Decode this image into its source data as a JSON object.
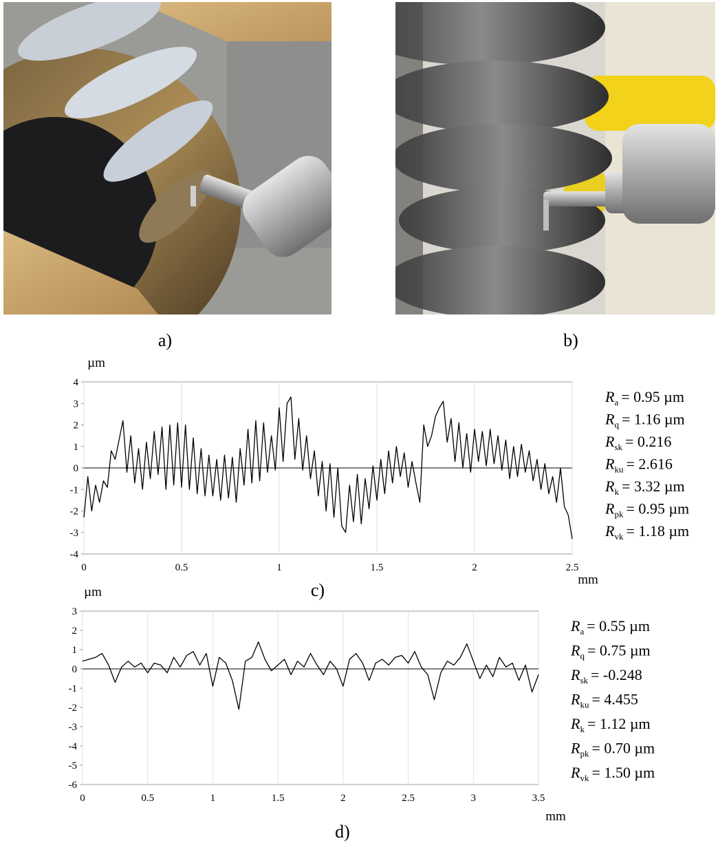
{
  "figure": {
    "photos": [
      {
        "caption": "a)"
      },
      {
        "caption": "b)"
      }
    ]
  },
  "chart_data": [
    {
      "type": "line",
      "caption": "c)",
      "xlabel": "mm",
      "ylabel": "µm",
      "grid": true,
      "xlim": [
        0,
        2.5
      ],
      "ylim": [
        -4,
        4
      ],
      "xticks": [
        0,
        0.5,
        1,
        1.5,
        2,
        2.5
      ],
      "yticks": [
        -4,
        -3,
        -2,
        -1,
        0,
        1,
        2,
        3,
        4
      ],
      "x": [
        0,
        0.02,
        0.04,
        0.06,
        0.08,
        0.1,
        0.12,
        0.14,
        0.16,
        0.18,
        0.2,
        0.22,
        0.24,
        0.26,
        0.28,
        0.3,
        0.32,
        0.34,
        0.36,
        0.38,
        0.4,
        0.42,
        0.44,
        0.46,
        0.48,
        0.5,
        0.52,
        0.54,
        0.56,
        0.58,
        0.6,
        0.62,
        0.64,
        0.66,
        0.68,
        0.7,
        0.72,
        0.74,
        0.76,
        0.78,
        0.8,
        0.82,
        0.84,
        0.86,
        0.88,
        0.9,
        0.92,
        0.94,
        0.96,
        0.98,
        1,
        1.02,
        1.04,
        1.06,
        1.08,
        1.1,
        1.12,
        1.14,
        1.16,
        1.18,
        1.2,
        1.22,
        1.24,
        1.26,
        1.28,
        1.3,
        1.32,
        1.34,
        1.36,
        1.38,
        1.4,
        1.42,
        1.44,
        1.46,
        1.48,
        1.5,
        1.52,
        1.54,
        1.56,
        1.58,
        1.6,
        1.62,
        1.64,
        1.66,
        1.68,
        1.7,
        1.72,
        1.74,
        1.76,
        1.78,
        1.8,
        1.82,
        1.84,
        1.86,
        1.88,
        1.9,
        1.92,
        1.94,
        1.96,
        1.98,
        2,
        2.02,
        2.04,
        2.06,
        2.08,
        2.1,
        2.12,
        2.14,
        2.16,
        2.18,
        2.2,
        2.22,
        2.24,
        2.26,
        2.28,
        2.3,
        2.32,
        2.34,
        2.36,
        2.38,
        2.4,
        2.42,
        2.44,
        2.46,
        2.48,
        2.5
      ],
      "series": [
        {
          "color": "#000000",
          "values": [
            -2.3,
            -0.4,
            -2.0,
            -0.8,
            -1.6,
            -0.6,
            -0.9,
            0.8,
            0.4,
            1.3,
            2.2,
            -0.2,
            1.5,
            -0.7,
            0.9,
            -1.0,
            1.2,
            -0.5,
            1.7,
            -0.3,
            1.9,
            -1.0,
            2.0,
            -0.8,
            2.1,
            -0.9,
            2.0,
            -1.0,
            1.4,
            -1.2,
            0.9,
            -1.3,
            0.6,
            -1.3,
            0.4,
            -1.5,
            0.6,
            -1.4,
            0.5,
            -1.6,
            0.9,
            -0.8,
            1.8,
            -0.7,
            2.2,
            -0.6,
            2.1,
            -0.2,
            1.5,
            -0.1,
            2.8,
            0.3,
            3.0,
            3.3,
            0.4,
            2.3,
            -0.1,
            1.5,
            -0.5,
            0.8,
            -1.3,
            0.3,
            -2.0,
            0.2,
            -2.3,
            0.0,
            -2.7,
            -3.0,
            -0.8,
            -2.5,
            -0.3,
            -2.6,
            -0.5,
            -1.9,
            0.1,
            -1.5,
            0.4,
            -1.2,
            0.8,
            -0.7,
            1.0,
            -0.4,
            0.7,
            -0.9,
            0.3,
            -0.7,
            -1.6,
            2.0,
            1.0,
            1.5,
            2.4,
            2.8,
            3.1,
            1.2,
            2.3,
            0.3,
            2.1,
            0.0,
            1.6,
            -0.2,
            1.8,
            0.3,
            1.7,
            0.1,
            1.8,
            0.2,
            1.5,
            -0.1,
            1.3,
            -0.5,
            1.0,
            -0.4,
            1.1,
            -0.2,
            0.8,
            -0.6,
            0.4,
            -1.0,
            0.2,
            -1.2,
            -0.4,
            -1.6,
            0.0,
            -1.8,
            -2.2,
            -3.3
          ]
        }
      ],
      "stats": [
        {
          "symbol": "R",
          "sub": "a",
          "rest": "= 0.95 µm"
        },
        {
          "symbol": "R",
          "sub": "q",
          "rest": "= 1.16 µm"
        },
        {
          "symbol": "R",
          "sub": "sk",
          "rest": "= 0.216"
        },
        {
          "symbol": "R",
          "sub": "ku",
          "rest": "= 2.616"
        },
        {
          "symbol": "R",
          "sub": "k",
          "rest": "= 3.32 µm"
        },
        {
          "symbol": "R",
          "sub": "pk",
          "rest": "= 0.95 µm"
        },
        {
          "symbol": "R",
          "sub": "vk",
          "rest": "= 1.18 µm"
        }
      ]
    },
    {
      "type": "line",
      "caption": "d)",
      "xlabel": "mm",
      "ylabel": "µm",
      "grid": true,
      "xlim": [
        0,
        3.5
      ],
      "ylim": [
        -6,
        3
      ],
      "xticks": [
        0,
        0.5,
        1,
        1.5,
        2,
        2.5,
        3,
        3.5
      ],
      "yticks": [
        -6,
        -5,
        -4,
        -3,
        -2,
        -1,
        0,
        1,
        2,
        3
      ],
      "x": [
        0,
        0.05,
        0.1,
        0.15,
        0.2,
        0.25,
        0.3,
        0.35,
        0.4,
        0.45,
        0.5,
        0.55,
        0.6,
        0.65,
        0.7,
        0.75,
        0.8,
        0.85,
        0.9,
        0.95,
        1,
        1.05,
        1.1,
        1.15,
        1.2,
        1.25,
        1.3,
        1.35,
        1.4,
        1.45,
        1.5,
        1.55,
        1.6,
        1.65,
        1.7,
        1.75,
        1.8,
        1.85,
        1.9,
        1.95,
        2,
        2.05,
        2.1,
        2.15,
        2.2,
        2.25,
        2.3,
        2.35,
        2.4,
        2.45,
        2.5,
        2.55,
        2.6,
        2.65,
        2.7,
        2.75,
        2.8,
        2.85,
        2.9,
        2.95,
        3,
        3.05,
        3.1,
        3.15,
        3.2,
        3.25,
        3.3,
        3.35,
        3.4,
        3.45,
        3.5
      ],
      "series": [
        {
          "color": "#000000",
          "values": [
            0.4,
            0.5,
            0.6,
            0.8,
            0.2,
            -0.7,
            0.1,
            0.4,
            0.1,
            0.3,
            -0.2,
            0.3,
            0.2,
            -0.2,
            0.6,
            0.1,
            0.7,
            0.9,
            0.2,
            0.8,
            -0.9,
            0.6,
            0.3,
            -0.6,
            -2.1,
            0.4,
            0.6,
            1.4,
            0.5,
            -0.1,
            0.2,
            0.5,
            -0.3,
            0.4,
            0.1,
            0.8,
            0.2,
            -0.3,
            0.4,
            0.0,
            -0.9,
            0.5,
            0.8,
            0.3,
            -0.6,
            0.3,
            0.5,
            0.2,
            0.6,
            0.7,
            0.3,
            0.9,
            0.1,
            -0.3,
            -1.6,
            -0.2,
            0.4,
            0.2,
            0.6,
            1.3,
            0.4,
            -0.5,
            0.2,
            -0.4,
            0.6,
            0.1,
            0.3,
            -0.6,
            0.2,
            -1.2,
            -0.3
          ]
        }
      ],
      "stats": [
        {
          "symbol": "R",
          "sub": "a",
          "rest": "= 0.55 µm"
        },
        {
          "symbol": "R",
          "sub": "q",
          "rest": "= 0.75 µm"
        },
        {
          "symbol": "R",
          "sub": "sk",
          "rest": "= -0.248"
        },
        {
          "symbol": "R",
          "sub": "ku",
          "rest": "= 4.455"
        },
        {
          "symbol": "R",
          "sub": "k",
          "rest": "= 1.12 µm"
        },
        {
          "symbol": "R",
          "sub": "pk",
          "rest": "= 0.70 µm"
        },
        {
          "symbol": "R",
          "sub": "vk",
          "rest": "= 1.50 µm"
        }
      ]
    }
  ]
}
